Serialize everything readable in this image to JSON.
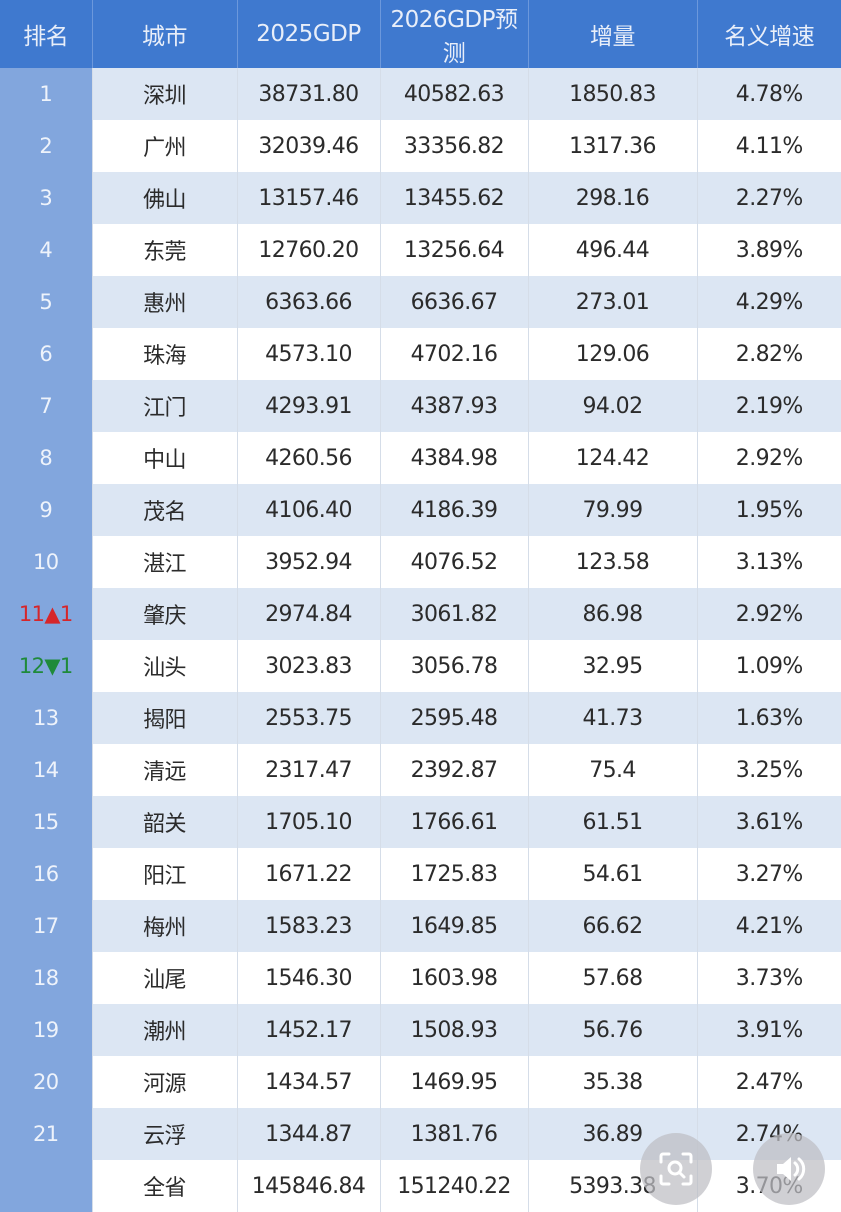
{
  "table": {
    "headers": [
      "排名",
      "城市",
      "2025GDP",
      "2026GDP预测",
      "增量",
      "名义增速"
    ],
    "rows": [
      {
        "rank": "1",
        "city": "深圳",
        "gdp2025": "38731.80",
        "gdp2026": "40582.63",
        "increase": "1850.83",
        "growth": "4.78%"
      },
      {
        "rank": "2",
        "city": "广州",
        "gdp2025": "32039.46",
        "gdp2026": "33356.82",
        "increase": "1317.36",
        "growth": "4.11%"
      },
      {
        "rank": "3",
        "city": "佛山",
        "gdp2025": "13157.46",
        "gdp2026": "13455.62",
        "increase": "298.16",
        "growth": "2.27%"
      },
      {
        "rank": "4",
        "city": "东莞",
        "gdp2025": "12760.20",
        "gdp2026": "13256.64",
        "increase": "496.44",
        "growth": "3.89%"
      },
      {
        "rank": "5",
        "city": "惠州",
        "gdp2025": "6363.66",
        "gdp2026": "6636.67",
        "increase": "273.01",
        "growth": "4.29%"
      },
      {
        "rank": "6",
        "city": "珠海",
        "gdp2025": "4573.10",
        "gdp2026": "4702.16",
        "increase": "129.06",
        "growth": "2.82%"
      },
      {
        "rank": "7",
        "city": "江门",
        "gdp2025": "4293.91",
        "gdp2026": "4387.93",
        "increase": "94.02",
        "growth": "2.19%"
      },
      {
        "rank": "8",
        "city": "中山",
        "gdp2025": "4260.56",
        "gdp2026": "4384.98",
        "increase": "124.42",
        "growth": "2.92%"
      },
      {
        "rank": "9",
        "city": "茂名",
        "gdp2025": "4106.40",
        "gdp2026": "4186.39",
        "increase": "79.99",
        "growth": "1.95%"
      },
      {
        "rank": "10",
        "city": "湛江",
        "gdp2025": "3952.94",
        "gdp2026": "4076.52",
        "increase": "123.58",
        "growth": "3.13%"
      },
      {
        "rank": "11",
        "rank_change": "▲1",
        "rank_change_dir": "up",
        "city": "肇庆",
        "gdp2025": "2974.84",
        "gdp2026": "3061.82",
        "increase": "86.98",
        "growth": "2.92%"
      },
      {
        "rank": "12",
        "rank_change": "▼1",
        "rank_change_dir": "down",
        "city": "汕头",
        "gdp2025": "3023.83",
        "gdp2026": "3056.78",
        "increase": "32.95",
        "growth": "1.09%"
      },
      {
        "rank": "13",
        "city": "揭阳",
        "gdp2025": "2553.75",
        "gdp2026": "2595.48",
        "increase": "41.73",
        "growth": "1.63%"
      },
      {
        "rank": "14",
        "city": "清远",
        "gdp2025": "2317.47",
        "gdp2026": "2392.87",
        "increase": "75.4",
        "growth": "3.25%"
      },
      {
        "rank": "15",
        "city": "韶关",
        "gdp2025": "1705.10",
        "gdp2026": "1766.61",
        "increase": "61.51",
        "growth": "3.61%"
      },
      {
        "rank": "16",
        "city": "阳江",
        "gdp2025": "1671.22",
        "gdp2026": "1725.83",
        "increase": "54.61",
        "growth": "3.27%"
      },
      {
        "rank": "17",
        "city": "梅州",
        "gdp2025": "1583.23",
        "gdp2026": "1649.85",
        "increase": "66.62",
        "growth": "4.21%"
      },
      {
        "rank": "18",
        "city": "汕尾",
        "gdp2025": "1546.30",
        "gdp2026": "1603.98",
        "increase": "57.68",
        "growth": "3.73%"
      },
      {
        "rank": "19",
        "city": "潮州",
        "gdp2025": "1452.17",
        "gdp2026": "1508.93",
        "increase": "56.76",
        "growth": "3.91%"
      },
      {
        "rank": "20",
        "city": "河源",
        "gdp2025": "1434.57",
        "gdp2026": "1469.95",
        "increase": "35.38",
        "growth": "2.47%"
      },
      {
        "rank": "21",
        "city": "云浮",
        "gdp2025": "1344.87",
        "gdp2026": "1381.76",
        "increase": "36.89",
        "growth": "2.74%"
      }
    ],
    "total": {
      "rank": "",
      "city": "全省",
      "gdp2025": "145846.84",
      "gdp2026": "151240.22",
      "increase": "5393.38",
      "growth": "3.70%"
    }
  },
  "overlay": {
    "buttons": [
      {
        "icon": "image-search-icon"
      },
      {
        "icon": "speaker-icon"
      }
    ]
  },
  "colors": {
    "header_bg": "#3f79cf",
    "rank_col_bg": "#82a6dd",
    "stripe_bg": "#d9e4f2",
    "rank_up": "#d6262a",
    "rank_down": "#1f8a3a"
  },
  "chart_data": {
    "type": "table",
    "title": "",
    "columns": [
      "排名",
      "城市",
      "2025GDP",
      "2026GDP预测",
      "增量",
      "名义增速"
    ],
    "rows": [
      [
        "1",
        "深圳",
        38731.8,
        40582.63,
        1850.83,
        "4.78%"
      ],
      [
        "2",
        "广州",
        32039.46,
        33356.82,
        1317.36,
        "4.11%"
      ],
      [
        "3",
        "佛山",
        13157.46,
        13455.62,
        298.16,
        "2.27%"
      ],
      [
        "4",
        "东莞",
        12760.2,
        13256.64,
        496.44,
        "3.89%"
      ],
      [
        "5",
        "惠州",
        6363.66,
        6636.67,
        273.01,
        "4.29%"
      ],
      [
        "6",
        "珠海",
        4573.1,
        4702.16,
        129.06,
        "2.82%"
      ],
      [
        "7",
        "江门",
        4293.91,
        4387.93,
        94.02,
        "2.19%"
      ],
      [
        "8",
        "中山",
        4260.56,
        4384.98,
        124.42,
        "2.92%"
      ],
      [
        "9",
        "茂名",
        4106.4,
        4186.39,
        79.99,
        "1.95%"
      ],
      [
        "10",
        "湛江",
        3952.94,
        4076.52,
        123.58,
        "3.13%"
      ],
      [
        "11▲1",
        "肇庆",
        2974.84,
        3061.82,
        86.98,
        "2.92%"
      ],
      [
        "12▼1",
        "汕头",
        3023.83,
        3056.78,
        32.95,
        "1.09%"
      ],
      [
        "13",
        "揭阳",
        2553.75,
        2595.48,
        41.73,
        "1.63%"
      ],
      [
        "14",
        "清远",
        2317.47,
        2392.87,
        75.4,
        "3.25%"
      ],
      [
        "15",
        "韶关",
        1705.1,
        1766.61,
        61.51,
        "3.61%"
      ],
      [
        "16",
        "阳江",
        1671.22,
        1725.83,
        54.61,
        "3.27%"
      ],
      [
        "17",
        "梅州",
        1583.23,
        1649.85,
        66.62,
        "4.21%"
      ],
      [
        "18",
        "汕尾",
        1546.3,
        1603.98,
        57.68,
        "3.73%"
      ],
      [
        "19",
        "潮州",
        1452.17,
        1508.93,
        56.76,
        "3.91%"
      ],
      [
        "20",
        "河源",
        1434.57,
        1469.95,
        35.38,
        "2.47%"
      ],
      [
        "21",
        "云浮",
        1344.87,
        1381.76,
        36.89,
        "2.74%"
      ],
      [
        "",
        "全省",
        145846.84,
        151240.22,
        5393.38,
        "3.70%"
      ]
    ]
  }
}
